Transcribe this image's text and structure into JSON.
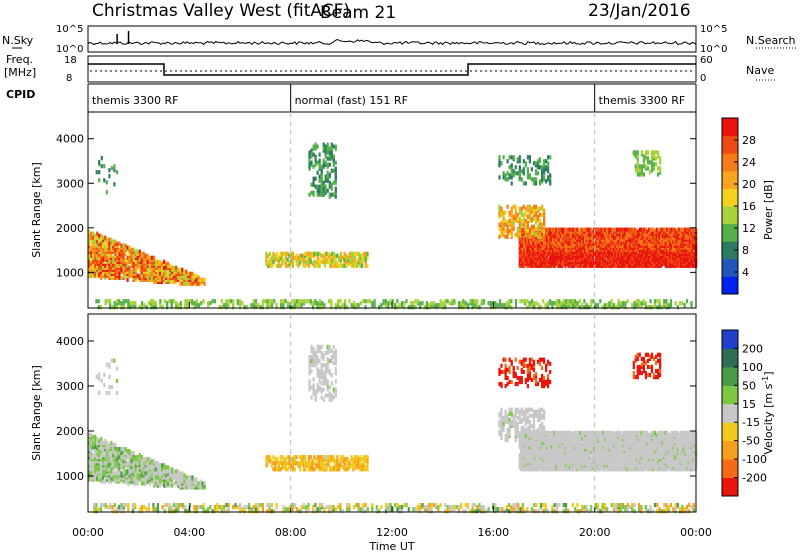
{
  "header": {
    "radar": "Christmas Valley West (fitACF)",
    "beam": "Beam 21",
    "date": "23/Jan/2016"
  },
  "side_labels": {
    "nsky": "N.Sky",
    "nsearch": "N.Search",
    "freq": "Freq.",
    "freq_unit": "[MHz]",
    "nave": "Nave",
    "cpid": "CPID"
  },
  "small_ticks": {
    "noise_top": "10^5",
    "noise_bottom": "10^0",
    "freq_top": "18",
    "freq_bottom": "8",
    "nave_top": "60",
    "nave_bottom": "0"
  },
  "cpid_segments": [
    {
      "label": "themis 3300 RF",
      "start": 0,
      "end": 8
    },
    {
      "label": "normal (fast) 151 RF",
      "start": 8,
      "end": 20
    },
    {
      "label": "themis 3300 RF",
      "start": 20,
      "end": 24
    }
  ],
  "chart_data": [
    {
      "type": "heatmap",
      "quantity": "power",
      "ylabel": "Slant Range [km]",
      "ylim": [
        200,
        4600
      ],
      "yticks": [
        1000,
        2000,
        3000,
        4000
      ],
      "xlim": [
        0,
        24
      ],
      "xticks": [
        "00:00",
        "04:00",
        "08:00",
        "12:00",
        "16:00",
        "20:00",
        "00:00"
      ],
      "colorbar": {
        "label": "Power [dB]",
        "ticks": [
          "4",
          "8",
          "12",
          "16",
          "20",
          "24",
          "28"
        ],
        "colors": [
          "#0022ee",
          "#2255bb",
          "#2e7a62",
          "#55b04a",
          "#a8d23a",
          "#f2d21e",
          "#f7a51c",
          "#f57a18",
          "#ef4a14",
          "#e8140e"
        ]
      },
      "bands": [
        {
          "name": "near-range",
          "x": [
            0.2,
            23.9
          ],
          "range": [
            220,
            360
          ],
          "level": "low-mid"
        },
        {
          "name": "early-echo",
          "x": [
            0,
            4.6
          ],
          "range": [
            700,
            1950
          ],
          "level": "mid-high"
        },
        {
          "name": "mid-echo",
          "x": [
            7,
            11
          ],
          "range": [
            1150,
            1450
          ],
          "level": "mid"
        },
        {
          "name": "late-echo",
          "x": [
            17,
            24
          ],
          "range": [
            1150,
            2000
          ],
          "level": "high"
        }
      ]
    },
    {
      "type": "heatmap",
      "quantity": "velocity",
      "ylabel": "Slant Range [km]",
      "ylim": [
        200,
        4600
      ],
      "yticks": [
        1000,
        2000,
        3000,
        4000
      ],
      "xlim": [
        0,
        24
      ],
      "xlabel": "Time UT",
      "xticks": [
        "00:00",
        "04:00",
        "08:00",
        "12:00",
        "16:00",
        "20:00",
        "00:00"
      ],
      "colorbar": {
        "label": "Velocity [m s^-1]",
        "ticks": [
          "200",
          "100",
          "50",
          "15",
          "-15",
          "-50",
          "-100",
          "-200"
        ],
        "colors": [
          "#2040cc",
          "#2e6e55",
          "#4a9a48",
          "#7cc844",
          "#c8c8c8",
          "#f2ca1e",
          "#f5a01c",
          "#f56a16",
          "#e8140e"
        ]
      }
    }
  ]
}
